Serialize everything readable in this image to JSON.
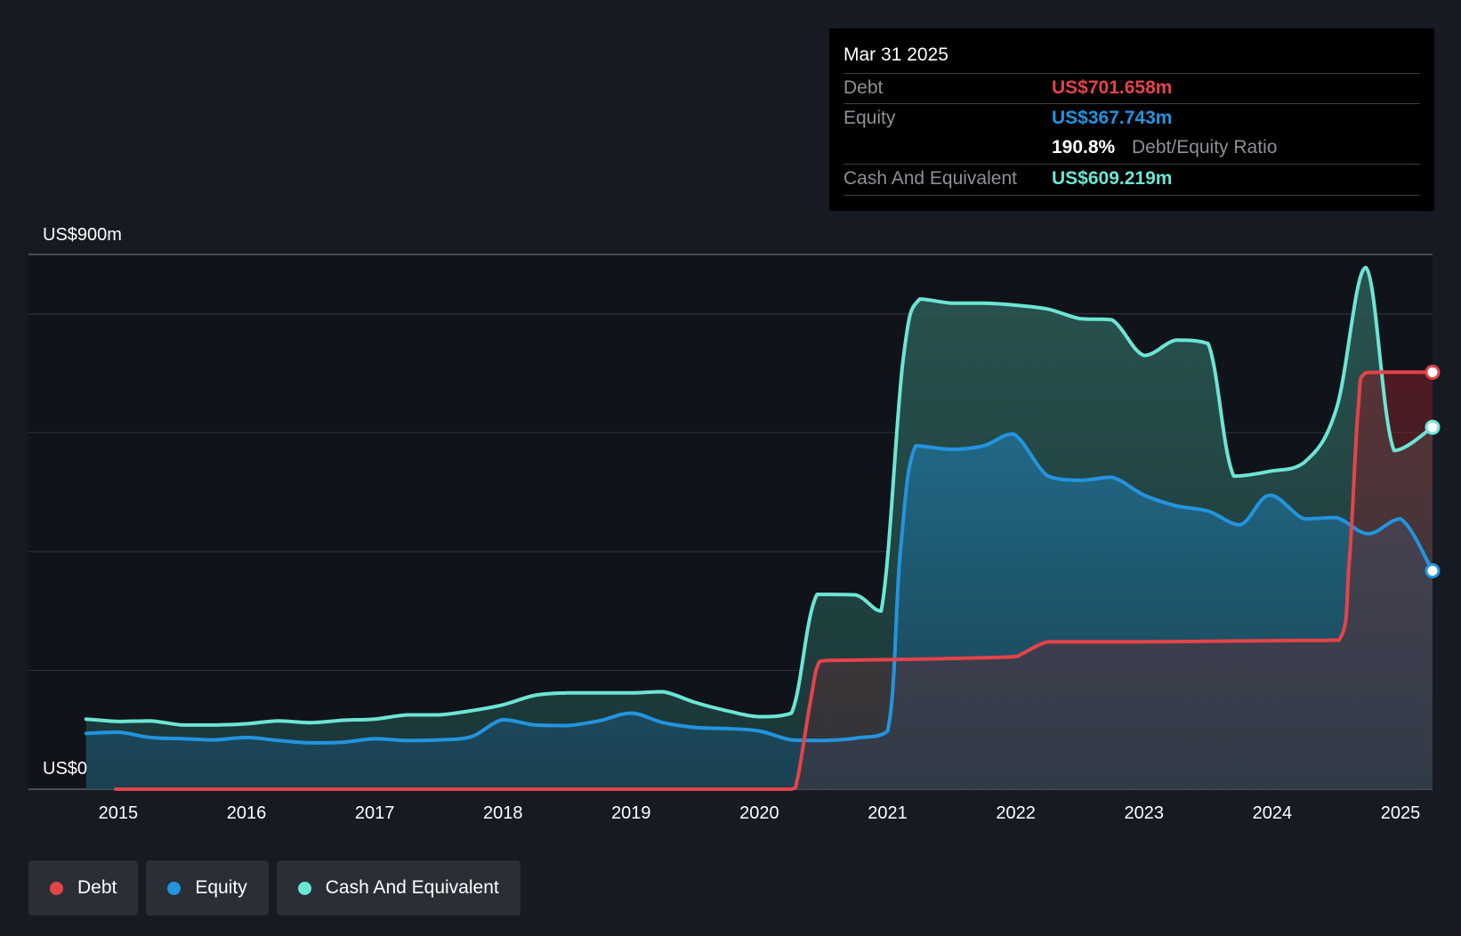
{
  "tooltip": {
    "date": "Mar 31 2025",
    "debt_label": "Debt",
    "debt_value": "US$701.658m",
    "equity_label": "Equity",
    "equity_value": "US$367.743m",
    "ratio_value": "190.8%",
    "ratio_label": "Debt/Equity Ratio",
    "cash_label": "Cash And Equivalent",
    "cash_value": "US$609.219m"
  },
  "legend": [
    {
      "label": "Debt",
      "color": "#e5434a"
    },
    {
      "label": "Equity",
      "color": "#2394df"
    },
    {
      "label": "Cash And Equivalent",
      "color": "#6ce5d4"
    }
  ],
  "chart_data": {
    "type": "area",
    "y_axis_labels": {
      "top": "US$900m",
      "bottom": "US$0"
    },
    "ylim": [
      0,
      900
    ],
    "xlim": [
      2014.3,
      2025.25
    ],
    "x_ticks": [
      2015,
      2016,
      2017,
      2018,
      2019,
      2020,
      2021,
      2022,
      2023,
      2024,
      2025
    ],
    "gridlines_y": [
      0,
      200,
      400,
      600,
      800,
      900
    ],
    "series": [
      {
        "name": "Debt",
        "color": "#e5434a",
        "points": [
          [
            2014.98,
            0
          ],
          [
            2016,
            0
          ],
          [
            2017,
            0
          ],
          [
            2018,
            0
          ],
          [
            2019,
            0
          ],
          [
            2020,
            0
          ],
          [
            2020.25,
            0
          ],
          [
            2020.3,
            20
          ],
          [
            2020.4,
            150
          ],
          [
            2020.47,
            215
          ],
          [
            2020.6,
            217
          ],
          [
            2021,
            218
          ],
          [
            2021.5,
            220
          ],
          [
            2021.98,
            223
          ],
          [
            2022.05,
            228
          ],
          [
            2022.25,
            248
          ],
          [
            2022.5,
            248
          ],
          [
            2023,
            248
          ],
          [
            2023.5,
            249
          ],
          [
            2024,
            250
          ],
          [
            2024.52,
            251
          ],
          [
            2024.6,
            380
          ],
          [
            2024.67,
            640
          ],
          [
            2024.73,
            701
          ],
          [
            2025,
            702
          ],
          [
            2025.25,
            701.7
          ]
        ]
      },
      {
        "name": "Equity",
        "color": "#2394df",
        "points": [
          [
            2014.75,
            94
          ],
          [
            2015,
            96
          ],
          [
            2015.25,
            87
          ],
          [
            2015.5,
            85
          ],
          [
            2015.75,
            83
          ],
          [
            2016,
            87
          ],
          [
            2016.25,
            82
          ],
          [
            2016.5,
            78
          ],
          [
            2016.75,
            79
          ],
          [
            2017,
            85
          ],
          [
            2017.25,
            82
          ],
          [
            2017.5,
            83
          ],
          [
            2017.75,
            88
          ],
          [
            2018,
            117
          ],
          [
            2018.25,
            108
          ],
          [
            2018.5,
            107
          ],
          [
            2018.75,
            115
          ],
          [
            2019,
            128
          ],
          [
            2019.25,
            112
          ],
          [
            2019.5,
            104
          ],
          [
            2019.75,
            102
          ],
          [
            2020,
            98
          ],
          [
            2020.25,
            83
          ],
          [
            2020.5,
            82
          ],
          [
            2020.75,
            86
          ],
          [
            2021,
            98
          ],
          [
            2021.1,
            400
          ],
          [
            2021.22,
            578
          ],
          [
            2021.5,
            572
          ],
          [
            2021.75,
            578
          ],
          [
            2021.98,
            598
          ],
          [
            2022.25,
            527
          ],
          [
            2022.5,
            520
          ],
          [
            2022.75,
            525
          ],
          [
            2023,
            495
          ],
          [
            2023.25,
            477
          ],
          [
            2023.5,
            468
          ],
          [
            2023.75,
            445
          ],
          [
            2023.98,
            495
          ],
          [
            2024.25,
            455
          ],
          [
            2024.5,
            457
          ],
          [
            2024.75,
            430
          ],
          [
            2025,
            455
          ],
          [
            2025.25,
            367.7
          ]
        ]
      },
      {
        "name": "Cash And Equivalent",
        "color": "#6ce5d4",
        "points": [
          [
            2014.75,
            118
          ],
          [
            2015,
            114
          ],
          [
            2015.25,
            115
          ],
          [
            2015.5,
            108
          ],
          [
            2015.75,
            108
          ],
          [
            2016,
            110
          ],
          [
            2016.25,
            115
          ],
          [
            2016.5,
            112
          ],
          [
            2016.75,
            116
          ],
          [
            2017,
            118
          ],
          [
            2017.25,
            125
          ],
          [
            2017.5,
            125
          ],
          [
            2017.75,
            132
          ],
          [
            2018,
            142
          ],
          [
            2018.25,
            158
          ],
          [
            2018.5,
            162
          ],
          [
            2018.75,
            162
          ],
          [
            2019,
            162
          ],
          [
            2019.25,
            164
          ],
          [
            2019.5,
            146
          ],
          [
            2019.75,
            132
          ],
          [
            2020,
            122
          ],
          [
            2020.25,
            128
          ],
          [
            2020.45,
            328
          ],
          [
            2020.75,
            327
          ],
          [
            2020.95,
            300
          ],
          [
            2021.12,
            720
          ],
          [
            2021.25,
            825
          ],
          [
            2021.5,
            818
          ],
          [
            2021.75,
            818
          ],
          [
            2021.98,
            815
          ],
          [
            2022.25,
            808
          ],
          [
            2022.5,
            792
          ],
          [
            2022.75,
            790
          ],
          [
            2023,
            730
          ],
          [
            2023.25,
            756
          ],
          [
            2023.5,
            750
          ],
          [
            2023.7,
            527
          ],
          [
            2023.98,
            535
          ],
          [
            2024.25,
            550
          ],
          [
            2024.5,
            640
          ],
          [
            2024.73,
            878
          ],
          [
            2024.95,
            570
          ],
          [
            2025.25,
            609.2
          ]
        ]
      }
    ]
  }
}
